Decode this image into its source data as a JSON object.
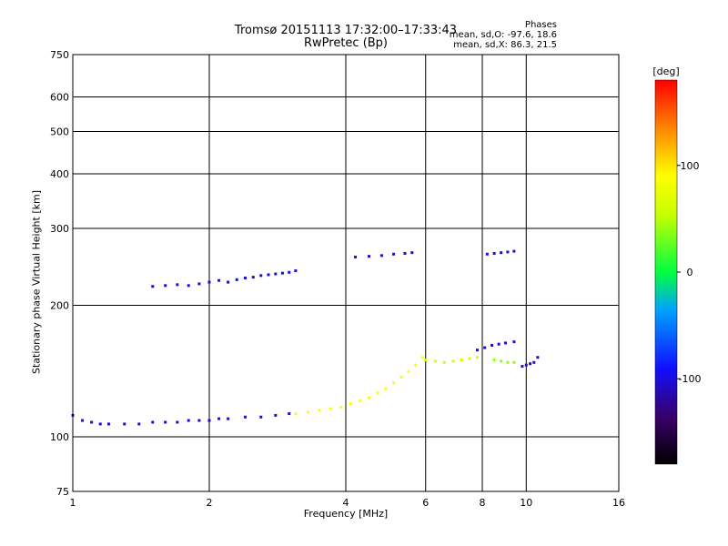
{
  "chart_data": {
    "type": "scatter",
    "title": "Tromsø 20151113 17:32:00–17:33:43",
    "subtitle": "RwPretec (Bp)",
    "xlabel": "Frequency [MHz]",
    "ylabel": "Stationary phase Virtual Height [km]",
    "xscale": "log",
    "yscale": "log",
    "xlim": [
      1,
      16
    ],
    "ylim": [
      75,
      750
    ],
    "xticks": [
      1,
      2,
      4,
      6,
      8,
      10,
      16
    ],
    "yticks": [
      75,
      100,
      200,
      300,
      400,
      500,
      600,
      750
    ],
    "grid": true,
    "colorbar": {
      "label": "[deg]",
      "range": [
        -180,
        180
      ],
      "ticks": [
        100,
        0,
        -100
      ]
    },
    "phase_stats": {
      "title": "Phases",
      "o": "mean, sd,O: -97.6, 18.6",
      "x": "mean, sd,X:  86.3, 21.5"
    },
    "series": [
      {
        "trace": "lower",
        "x": [
          1.0,
          1.05,
          1.1,
          1.15,
          1.2,
          1.3,
          1.4,
          1.5,
          1.6,
          1.7,
          1.8,
          1.9,
          2.0,
          2.1,
          2.2,
          2.4,
          2.6,
          2.8,
          3.0
        ],
        "y": [
          112,
          109,
          108,
          107,
          107,
          107,
          107,
          108,
          108,
          108,
          109,
          109,
          109,
          110,
          110,
          111,
          111,
          112,
          113
        ],
        "phase": -100
      },
      {
        "trace": "ext1",
        "x": [
          3.1,
          3.3,
          3.5,
          3.7,
          3.9,
          4.1,
          4.3,
          4.5,
          4.7,
          4.9,
          5.1,
          5.3,
          5.5,
          5.7,
          5.9
        ],
        "y": [
          113,
          114,
          115,
          116,
          117,
          119,
          121,
          123,
          126,
          129,
          133,
          137,
          141,
          146,
          152
        ],
        "phase": 90
      },
      {
        "trace": "upper",
        "x": [
          1.5,
          1.6,
          1.7,
          1.8,
          1.9,
          2.0,
          2.1,
          2.2,
          2.3,
          2.4,
          2.5,
          2.6,
          2.7,
          2.8,
          2.9,
          3.0,
          3.1
        ],
        "y": [
          221,
          222,
          223,
          222,
          224,
          226,
          228,
          226,
          229,
          231,
          232,
          234,
          235,
          236,
          237,
          238,
          240
        ],
        "phase": -100
      },
      {
        "trace": "ext2",
        "x": [
          6.0,
          6.3,
          6.6,
          6.9,
          7.2,
          7.5,
          7.8
        ],
        "y": [
          150,
          149,
          148,
          149,
          150,
          151,
          152
        ],
        "phase": 60
      },
      {
        "trace": "ext3",
        "x": [
          7.8,
          8.1,
          8.4,
          8.7,
          9.0,
          9.4
        ],
        "y": [
          158,
          160,
          162,
          163,
          164,
          165
        ],
        "phase": -100
      },
      {
        "trace": "ext4",
        "x": [
          8.5,
          8.8,
          9.1,
          9.4
        ],
        "y": [
          150,
          149,
          148,
          148
        ],
        "phase": 40
      },
      {
        "trace": "ext5",
        "x": [
          9.8,
          10.0,
          10.2,
          10.4,
          10.6
        ],
        "y": [
          145,
          146,
          147,
          148,
          152
        ],
        "phase": -100
      },
      {
        "trace": "ext6",
        "x": [
          4.2,
          4.5,
          4.8,
          5.1,
          5.4,
          5.6
        ],
        "y": [
          258,
          259,
          260,
          262,
          263,
          264
        ],
        "phase": -100
      },
      {
        "trace": "ext7",
        "x": [
          8.2,
          8.5,
          8.8,
          9.1,
          9.4
        ],
        "y": [
          262,
          263,
          264,
          265,
          266
        ],
        "phase": -100
      }
    ]
  }
}
